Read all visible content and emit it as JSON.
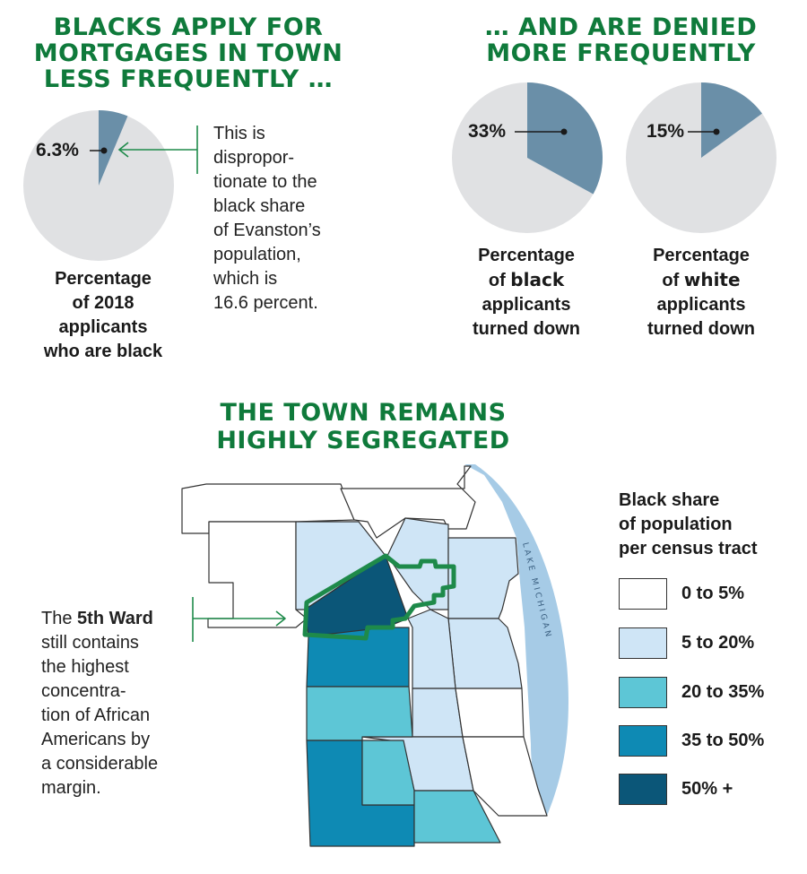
{
  "headlines": {
    "apply": [
      "BLACKS APPLY FOR",
      "MORTGAGES IN TOWN",
      "LESS FREQUENTLY …"
    ],
    "denied": [
      "… AND ARE DENIED",
      "MORE FREQUENTLY"
    ],
    "segregated": [
      "THE TOWN REMAINS",
      "HIGHLY SEGREGATED"
    ]
  },
  "pie_applicants": {
    "value_label": "6.3%",
    "caption": [
      "Percentage",
      "of 2018",
      "applicants",
      "who are black"
    ],
    "note": [
      "This is",
      "dispropor-",
      "tionate to the",
      "black share",
      "of Evanston’s",
      "population,",
      "which is",
      "16.6 percent."
    ]
  },
  "pie_black": {
    "value_label": "33%",
    "caption_line1": "Percentage",
    "caption_line2_pre": "of ",
    "caption_line2_bold": "black",
    "caption_rest": [
      "applicants",
      "turned down"
    ]
  },
  "pie_white": {
    "value_label": "15%",
    "caption_line1": "Percentage",
    "caption_line2_pre": "of ",
    "caption_line2_bold": "white",
    "caption_rest": [
      "applicants",
      "turned down"
    ]
  },
  "map": {
    "lake_label": "LAKE MICHIGAN",
    "ward_note_pre": "The ",
    "ward_note_bold": "5th Ward",
    "ward_note_rest": [
      "still contains",
      "the highest",
      "concentra-",
      "tion of African",
      "Americans by",
      "a considerable",
      "margin."
    ]
  },
  "legend": {
    "title": [
      "Black share",
      "of population",
      "per census tract"
    ],
    "items": [
      {
        "label": "0 to 5%",
        "color": "#ffffff"
      },
      {
        "label": "5 to 20%",
        "color": "#cfe5f6"
      },
      {
        "label": "20 to 35%",
        "color": "#5dc6d6"
      },
      {
        "label": "35 to 50%",
        "color": "#0e8ab4"
      },
      {
        "label": "50% +",
        "color": "#0b5678"
      }
    ]
  },
  "colors": {
    "headline": "#0f7a3b",
    "pie_slice": "#6a8fa8",
    "pie_rest": "#e0e1e3",
    "lake": "#a6cbe6",
    "ward_outline": "#1e8a4a"
  },
  "chart_data": [
    {
      "type": "pie",
      "title": "BLACKS APPLY FOR MORTGAGES IN TOWN LESS FREQUENTLY …",
      "slices": [
        {
          "label": "Percentage of 2018 applicants who are black",
          "value": 6.3
        },
        {
          "label": "",
          "value": 93.7
        }
      ]
    },
    {
      "type": "pie",
      "title": "… AND ARE DENIED MORE FREQUENTLY",
      "slices": [
        {
          "label": "Percentage of black applicants turned down",
          "value": 33
        },
        {
          "label": "",
          "value": 67
        }
      ]
    },
    {
      "type": "pie",
      "title": "… AND ARE DENIED MORE FREQUENTLY",
      "slices": [
        {
          "label": "Percentage of white applicants turned down",
          "value": 15
        },
        {
          "label": "",
          "value": 85
        }
      ]
    }
  ]
}
